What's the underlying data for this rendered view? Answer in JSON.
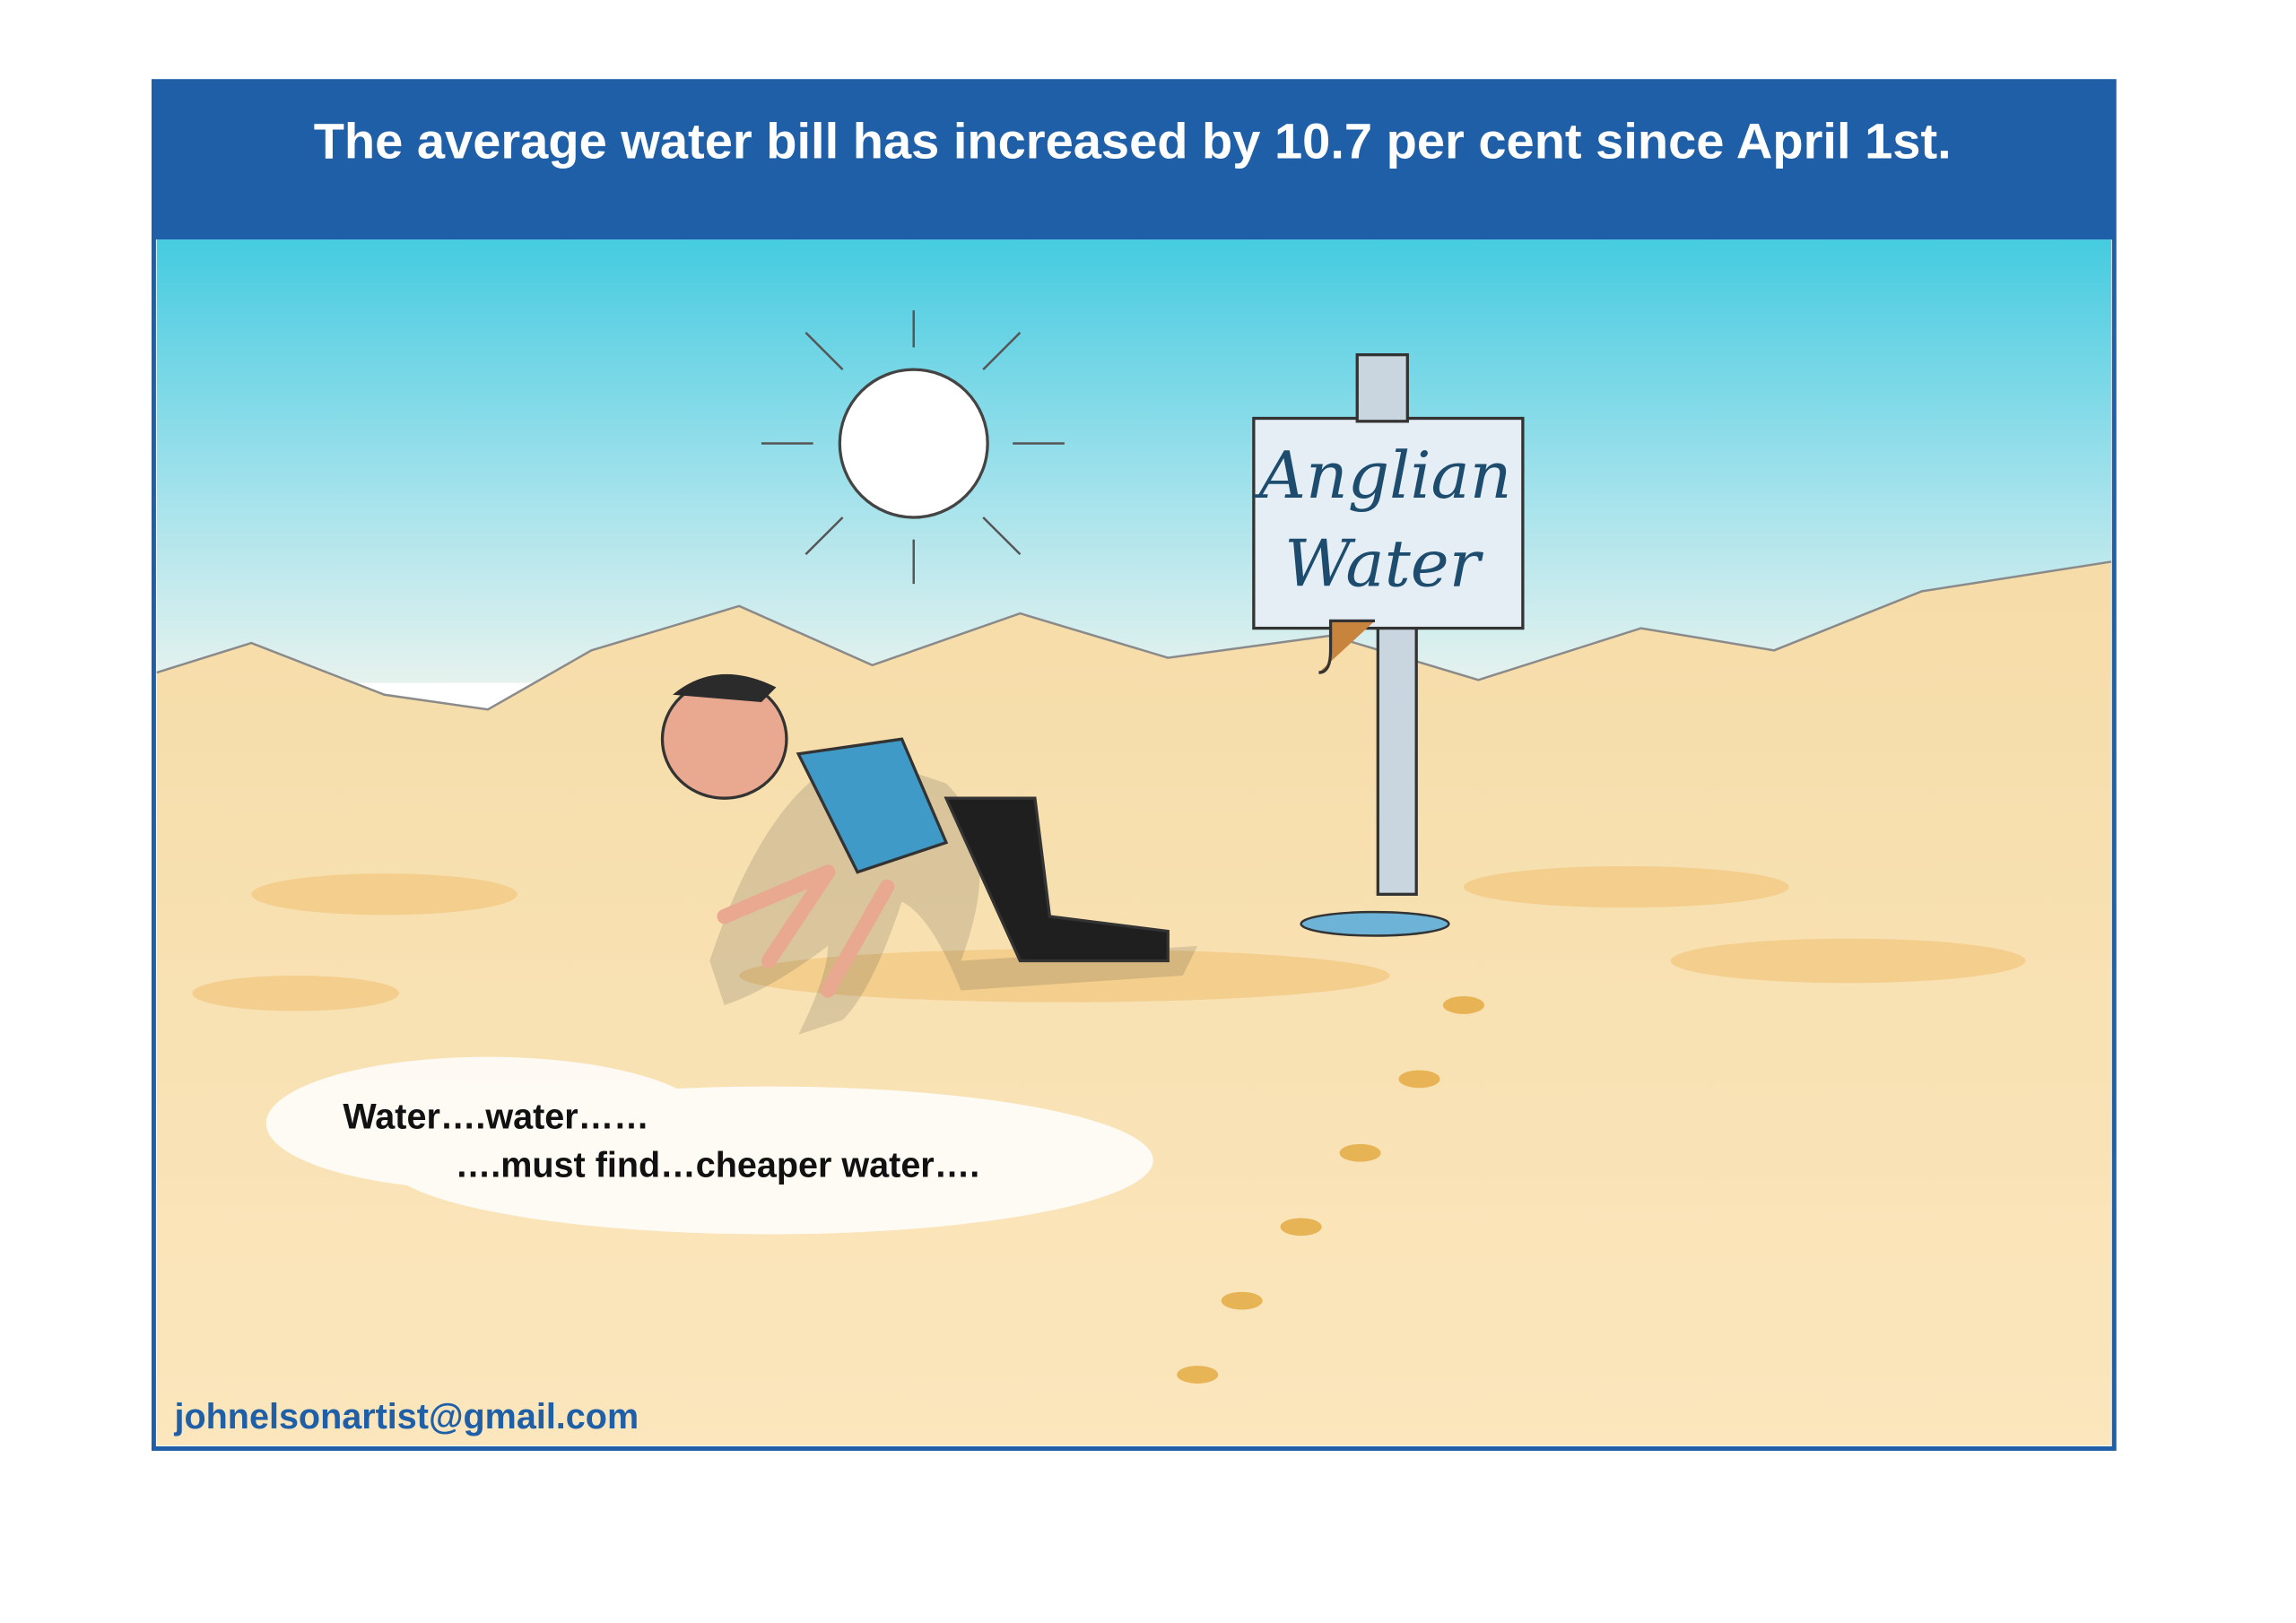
{
  "header": {
    "title": "The average water bill has increased by 10.7 per cent since April 1st."
  },
  "sign": {
    "lines": [
      "Anglian",
      "Water"
    ]
  },
  "caption": {
    "lines": [
      "Water….water……",
      "….must find…cheaper water…."
    ]
  },
  "footer": {
    "email": "johnelsonartist@gmail.com"
  }
}
